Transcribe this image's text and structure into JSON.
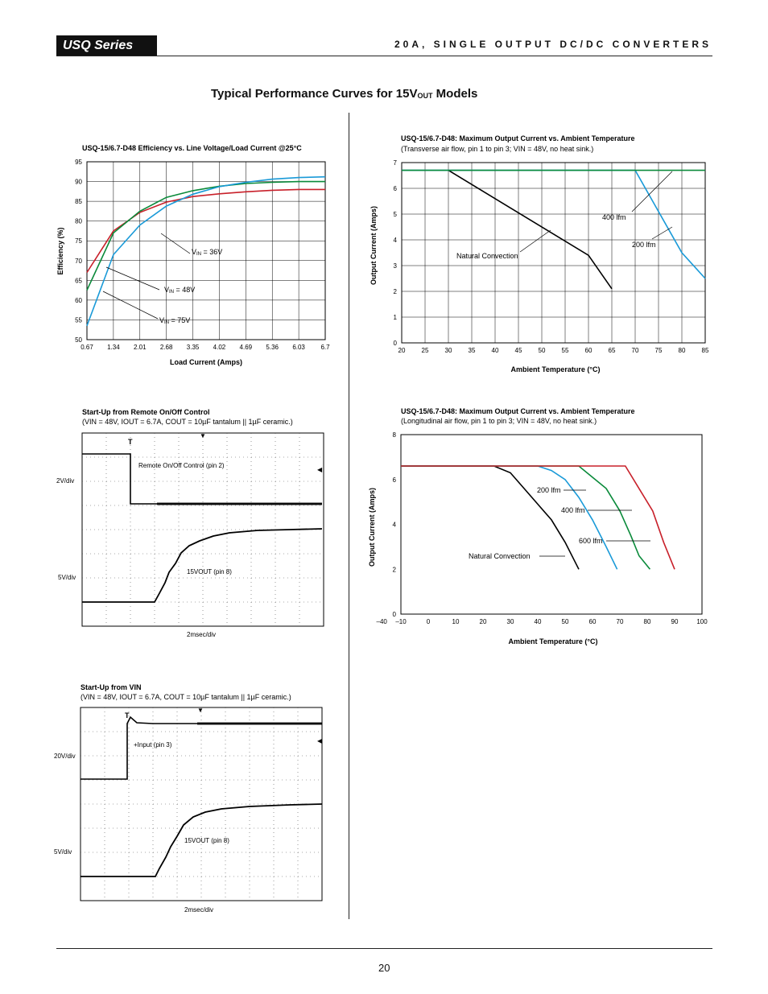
{
  "header": {
    "series": "USQ Series",
    "title": "20A, SINGLE OUTPUT DC/DC CONVERTERS"
  },
  "section_title": {
    "main": "Typical Performance Curves for 15V",
    "sub": "OUT",
    "suffix": " Models"
  },
  "page_number": "20",
  "colors": {
    "red": "#c8202a",
    "green": "#0a8a3a",
    "blue": "#1a9ad8",
    "black": "#000000"
  },
  "chart_data": [
    {
      "id": "efficiency",
      "type": "line",
      "title": "USQ-15/6.7-D48 Efficiency vs. Line Voltage/Load Current @25°C",
      "xlabel": "Load Current (Amps)",
      "ylabel": "Efficiency (%)",
      "x_ticks": [
        "0.67",
        "1.34",
        "2.01",
        "2.68",
        "3.35",
        "4.02",
        "4.69",
        "5.36",
        "6.03",
        "6.7"
      ],
      "y_ticks": [
        "50",
        "55",
        "60",
        "65",
        "70",
        "75",
        "80",
        "85",
        "90",
        "95"
      ],
      "xlim": [
        0.67,
        6.7
      ],
      "ylim": [
        50,
        95
      ],
      "grid": true,
      "series": [
        {
          "name": "VIN = 36V",
          "color": "#c8202a",
          "x": [
            0.67,
            1.34,
            2.01,
            2.68,
            3.35,
            4.02,
            4.69,
            5.36,
            6.03,
            6.7
          ],
          "values": [
            67,
            77.5,
            82.2,
            84.8,
            86.2,
            86.9,
            87.4,
            87.8,
            88,
            88
          ]
        },
        {
          "name": "VIN = 48V",
          "color": "#0a8a3a",
          "x": [
            0.67,
            1.34,
            2.01,
            2.68,
            3.35,
            4.02,
            4.69,
            5.36,
            6.03,
            6.7
          ],
          "values": [
            62.5,
            77,
            82.5,
            86,
            87.7,
            88.8,
            89.5,
            89.8,
            90,
            90
          ]
        },
        {
          "name": "VIN = 75V",
          "color": "#1a9ad8",
          "x": [
            0.67,
            1.34,
            2.01,
            2.68,
            3.35,
            4.02,
            4.69,
            5.36,
            6.03,
            6.7
          ],
          "values": [
            53.5,
            71.5,
            79,
            83.8,
            86.8,
            88.7,
            89.8,
            90.6,
            91,
            91.2
          ]
        }
      ],
      "labels": [
        {
          "text": "VIN = 36V",
          "prefix": "V",
          "sub": "IN",
          "rest": " = 36V"
        },
        {
          "text": "VIN = 48V",
          "prefix": "V",
          "sub": "IN",
          "rest": " = 48V"
        },
        {
          "text": "VIN = 75V",
          "prefix": "V",
          "sub": "IN",
          "rest": " = 75V"
        }
      ]
    },
    {
      "id": "derating-transverse",
      "type": "line",
      "title": "USQ-15/6.7-D48: Maximum Output Current vs. Ambient Temperature",
      "subtitle": "(Transverse air flow, pin 1 to pin 3; VIN = 48V, no heat sink.)",
      "xlabel": "Ambient Temperature (°C)",
      "ylabel": "Output Current (Amps)",
      "x_ticks": [
        "20",
        "25",
        "30",
        "35",
        "40",
        "45",
        "50",
        "55",
        "60",
        "65",
        "70",
        "75",
        "80",
        "85"
      ],
      "y_ticks": [
        "0",
        "1",
        "2",
        "3",
        "4",
        "5",
        "6",
        "7"
      ],
      "xlim": [
        20,
        85
      ],
      "ylim": [
        0,
        7
      ],
      "grid": true,
      "series": [
        {
          "name": "Natural Convection",
          "color": "#000000",
          "x": [
            30,
            60,
            65
          ],
          "values": [
            6.7,
            3.4,
            2.1
          ]
        },
        {
          "name": "200 lfm",
          "color": "#1a9ad8",
          "x": [
            20,
            70,
            75,
            80,
            83,
            85
          ],
          "values": [
            6.7,
            6.7,
            5.1,
            3.5,
            2.9,
            2.5
          ]
        },
        {
          "name": "400 lfm",
          "color": "#0a8a3a",
          "x": [
            20,
            85
          ],
          "values": [
            6.7,
            6.7
          ]
        }
      ],
      "annotations": [
        "Natural Convection",
        "400 lfm",
        "200 lfm"
      ]
    },
    {
      "id": "derating-longitudinal",
      "type": "line",
      "title": "USQ-15/6.7-D48: Maximum Output Current vs. Ambient Temperature",
      "subtitle": "(Longitudinal air flow, pin 1 to pin 3; VIN = 48V, no heat sink.)",
      "xlabel": "Ambient Temperature (°C)",
      "ylabel": "Output Current (Amps)",
      "x_ticks": [
        "–40",
        "–10",
        "0",
        "10",
        "20",
        "30",
        "40",
        "50",
        "60",
        "70",
        "80",
        "90",
        "100"
      ],
      "y_ticks": [
        "0",
        "2",
        "4",
        "6",
        "8"
      ],
      "xlim": [
        -10,
        100
      ],
      "ylim": [
        0,
        8
      ],
      "grid": false,
      "series": [
        {
          "name": "Natural Convection",
          "color": "#000000",
          "x": [
            -10,
            24,
            30,
            35,
            40,
            45,
            50,
            55
          ],
          "values": [
            6.6,
            6.6,
            6.3,
            5.6,
            4.9,
            4.2,
            3.2,
            2
          ]
        },
        {
          "name": "200 lfm",
          "color": "#1a9ad8",
          "x": [
            -10,
            40,
            45,
            50,
            55,
            60,
            65,
            69
          ],
          "values": [
            6.6,
            6.6,
            6.4,
            6,
            5.2,
            4.2,
            3,
            2
          ]
        },
        {
          "name": "400 lfm",
          "color": "#0a8a3a",
          "x": [
            -10,
            55,
            60,
            65,
            70,
            74,
            77,
            81
          ],
          "values": [
            6.6,
            6.6,
            6.1,
            5.6,
            4.6,
            3.5,
            2.6,
            2
          ]
        },
        {
          "name": "600 lfm",
          "color": "#c8202a",
          "x": [
            -10,
            72,
            77,
            82,
            86,
            90
          ],
          "values": [
            6.6,
            6.6,
            5.6,
            4.6,
            3.2,
            2
          ]
        }
      ],
      "annotations": [
        "200 lfm",
        "400 lfm",
        "600 lfm",
        "Natural Convection"
      ]
    },
    {
      "id": "startup-remote",
      "type": "line",
      "title": "Start-Up from Remote On/Off Control",
      "subtitle": "(VIN = 48V, IOUT = 6.7A, COUT = 10µF tantalum || 1µF ceramic.)",
      "y_scale_labels": [
        "2V/div",
        "5V/div"
      ],
      "time_scale": "2msec/div",
      "traces": [
        "Remote On/Off Control (pin 2)",
        "15VOUT (pin 8)"
      ]
    },
    {
      "id": "startup-vin",
      "type": "line",
      "title": "Start-Up from VIN",
      "subtitle": "(VIN = 48V, IOUT = 6.7A, COUT = 10µF tantalum || 1µF ceramic.)",
      "y_scale_labels": [
        "20V/div",
        "5V/div"
      ],
      "time_scale": "2msec/div",
      "traces": [
        "+Input (pin 3)",
        "15VOUT (pin 8)"
      ]
    }
  ]
}
